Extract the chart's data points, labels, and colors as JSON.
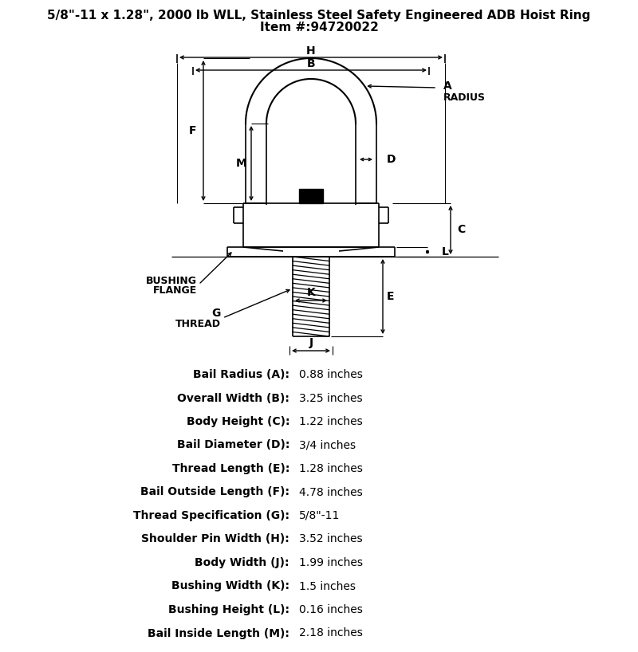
{
  "title_line1": "5/8\"-11 x 1.28\", 2000 lb WLL, Stainless Steel Safety Engineered ADB Hoist Ring",
  "title_line2": "Item #:94720022",
  "specs": [
    [
      "Bail Radius (A):",
      "0.88 inches"
    ],
    [
      "Overall Width (B):",
      "3.25 inches"
    ],
    [
      "Body Height (C):",
      "1.22 inches"
    ],
    [
      "Bail Diameter (D):",
      "3/4 inches"
    ],
    [
      "Thread Length (E):",
      "1.28 inches"
    ],
    [
      "Bail Outside Length (F):",
      "4.78 inches"
    ],
    [
      "Thread Specification (G):",
      "5/8\"-11"
    ],
    [
      "Shoulder Pin Width (H):",
      "3.52 inches"
    ],
    [
      "Body Width (J):",
      "1.99 inches"
    ],
    [
      "Bushing Width (K):",
      "1.5 inches"
    ],
    [
      "Bushing Height (L):",
      "0.16 inches"
    ],
    [
      "Bail Inside Length (M):",
      "2.18 inches"
    ]
  ],
  "bg_color": "#ffffff"
}
